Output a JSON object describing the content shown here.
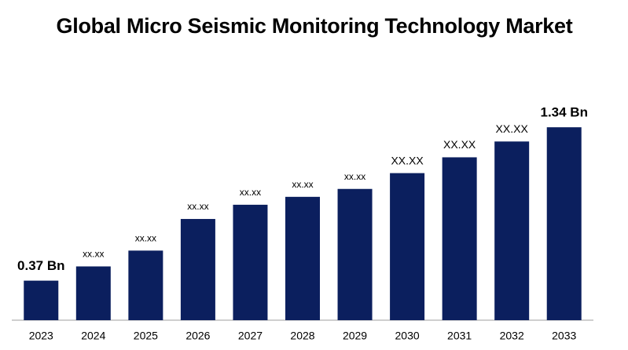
{
  "chart_data": {
    "type": "bar",
    "title": "Global Micro Seismic Monitoring Technology Market",
    "categories": [
      "2023",
      "2024",
      "2025",
      "2026",
      "2027",
      "2028",
      "2029",
      "2030",
      "2031",
      "2032",
      "2033"
    ],
    "values": [
      0.37,
      0.46,
      0.56,
      0.76,
      0.85,
      0.9,
      0.95,
      1.05,
      1.15,
      1.25,
      1.34
    ],
    "value_labels": [
      "0.37 Bn",
      "xx.xx",
      "xx.xx",
      "xx.xx",
      "xx.xx",
      "xx.xx",
      "xx.xx",
      "XX.XX",
      "XX.XX",
      "XX.XX",
      "1.34 Bn"
    ],
    "color": "#0b1f5e",
    "ylim": [
      0.12,
      1.45
    ]
  }
}
